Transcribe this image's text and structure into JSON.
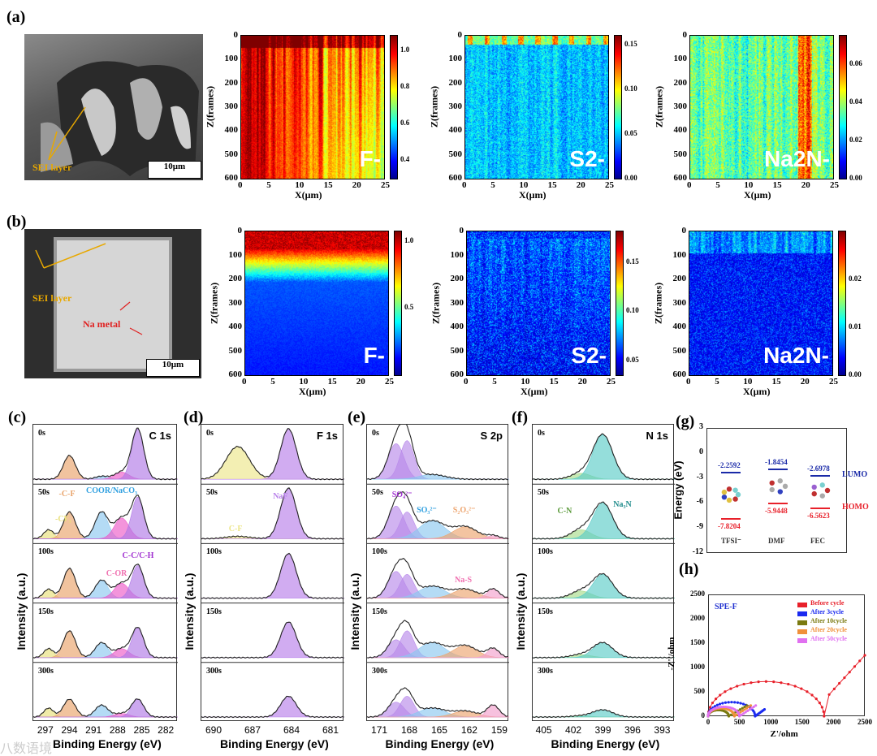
{
  "panel_labels": {
    "a": "(a)",
    "b": "(b)",
    "c": "(c)",
    "d": "(d)",
    "e": "(e)",
    "f": "(f)",
    "g": "(g)",
    "h": "(h)"
  },
  "sem": [
    {
      "scale": "10μm",
      "labels": [
        "SEI layer"
      ]
    },
    {
      "scale": "10μm",
      "labels": [
        "SEI layer",
        "Na metal"
      ]
    }
  ],
  "watermark": "八数语境",
  "chart_data": [
    {
      "type": "heatmap",
      "id": "a-F",
      "ion": "F-",
      "xlabel": "X(μm)",
      "ylabel": "Z(frames)",
      "xlim": [
        0,
        25
      ],
      "ylim": [
        600,
        0
      ],
      "xticks": [
        0,
        5,
        10,
        15,
        20,
        25
      ],
      "yticks": [
        0,
        100,
        200,
        300,
        400,
        500,
        600
      ],
      "cbar": [
        0.3,
        1.08
      ],
      "cticks": [
        "1.0",
        "0.8",
        "0.6",
        "0.4"
      ],
      "pattern": "streaks-high"
    },
    {
      "type": "heatmap",
      "id": "a-S",
      "ion": "S2-",
      "xlabel": "X(μm)",
      "ylabel": "Z(frames)",
      "xlim": [
        0,
        25
      ],
      "ylim": [
        600,
        0
      ],
      "xticks": [
        0,
        5,
        10,
        15,
        20,
        25
      ],
      "yticks": [
        0,
        100,
        200,
        300,
        400,
        500,
        600
      ],
      "cbar": [
        0,
        0.16
      ],
      "cticks": [
        "0.15",
        "0.10",
        "0.05",
        "0.00"
      ],
      "pattern": "top-spots"
    },
    {
      "type": "heatmap",
      "id": "a-N",
      "ion": "Na2N-",
      "xlabel": "X(μm)",
      "ylabel": "Z(frames)",
      "xlim": [
        0,
        25
      ],
      "ylim": [
        600,
        0
      ],
      "xticks": [
        0,
        5,
        10,
        15,
        20,
        25
      ],
      "yticks": [
        0,
        100,
        200,
        300,
        400,
        500,
        600
      ],
      "cbar": [
        0,
        0.075
      ],
      "cticks": [
        "0.06",
        "0.04",
        "0.02",
        "0.00"
      ],
      "pattern": "streaks-mid"
    },
    {
      "type": "heatmap",
      "id": "b-F",
      "ion": "F-",
      "xlabel": "X(μm)",
      "ylabel": "Z(frames)",
      "xlim": [
        0,
        25
      ],
      "ylim": [
        600,
        0
      ],
      "xticks": [
        0,
        5,
        10,
        15,
        20,
        25
      ],
      "yticks": [
        0,
        100,
        200,
        300,
        400,
        500,
        600
      ],
      "cbar": [
        0,
        1.07
      ],
      "cticks": [
        "1.0",
        "0.5"
      ],
      "pattern": "top-band"
    },
    {
      "type": "heatmap",
      "id": "b-S",
      "ion": "S2-",
      "xlabel": "X(μm)",
      "ylabel": "Z(frames)",
      "xlim": [
        0,
        25
      ],
      "ylim": [
        600,
        0
      ],
      "xticks": [
        0,
        5,
        10,
        15,
        20,
        25
      ],
      "yticks": [
        0,
        100,
        200,
        300,
        400,
        500,
        600
      ],
      "cbar": [
        0.035,
        0.181
      ],
      "cticks": [
        "0.15",
        "0.10",
        "0.05"
      ],
      "pattern": "noise"
    },
    {
      "type": "heatmap",
      "id": "b-N",
      "ion": "Na2N-",
      "xlabel": "X(μm)",
      "ylabel": "Z(frames)",
      "xlim": [
        0,
        25
      ],
      "ylim": [
        600,
        0
      ],
      "xticks": [
        0,
        5,
        10,
        15,
        20,
        25
      ],
      "yticks": [
        0,
        100,
        200,
        300,
        400,
        500,
        600
      ],
      "cbar": [
        0,
        0.03
      ],
      "cticks": [
        "0.02",
        "0.01",
        "0.00"
      ],
      "pattern": "low-top"
    },
    {
      "type": "line",
      "id": "c",
      "title": "C 1s",
      "xlabel": "Binding Energy (eV)",
      "ylabel": "Intensity (a.u.)",
      "xlim": [
        298.6,
        280.6
      ],
      "xticks": [
        297,
        294,
        291,
        288,
        285,
        282
      ],
      "rows": [
        "0s",
        "50s",
        "100s",
        "150s",
        "300s"
      ],
      "components": [
        {
          "name": "-CF3",
          "label": "-CF₃",
          "center": 296.7,
          "sigma": 0.6,
          "color": "#e8e07a",
          "heights": [
            0,
            0.15,
            0.15,
            0.15,
            0.15
          ]
        },
        {
          "name": "-C-F",
          "label": "-C-F",
          "center": 294.1,
          "sigma": 0.75,
          "color": "#e9a36a",
          "heights": [
            0.4,
            0.45,
            0.5,
            0.45,
            0.3
          ]
        },
        {
          "name": "COOR/NaCO3",
          "label": "COOR/NaCO₃",
          "center": 290.1,
          "sigma": 0.8,
          "color": "#8cc8f0",
          "heights": [
            0.05,
            0.45,
            0.3,
            0.25,
            0.2
          ]
        },
        {
          "name": "C-OR",
          "label": "C-OR",
          "center": 287.6,
          "sigma": 0.9,
          "color": "#ec5ac8",
          "heights": [
            0.12,
            0.35,
            0.25,
            0.15,
            0.06
          ]
        },
        {
          "name": "C-C/C-H",
          "label": "C-C/C-H",
          "center": 285.6,
          "sigma": 0.75,
          "color": "#b07ae6",
          "heights": [
            0.85,
            0.7,
            0.55,
            0.5,
            0.3
          ]
        }
      ]
    },
    {
      "type": "line",
      "id": "d",
      "title": "F 1s",
      "xlabel": "Binding Energy (eV)",
      "ylabel": "Intensity (a.u.)",
      "xlim": [
        691,
        680
      ],
      "xticks": [
        690,
        687,
        684,
        681
      ],
      "rows": [
        "0s",
        "50s",
        "100s",
        "150s",
        "300s"
      ],
      "components": [
        {
          "name": "C-F",
          "label": "C-F",
          "center": 688.2,
          "sigma": 0.9,
          "color": "#ece68a",
          "heights": [
            0.55,
            0.04,
            0,
            0,
            0
          ]
        },
        {
          "name": "NaF",
          "label": "NaF",
          "center": 684.3,
          "sigma": 0.6,
          "color": "#b880ea",
          "heights": [
            0.85,
            0.85,
            0.75,
            0.6,
            0.35
          ]
        }
      ]
    },
    {
      "type": "line",
      "id": "e",
      "title": "S 2p",
      "xlabel": "Binding Energy (eV)",
      "ylabel": "Intensity (a.u.)",
      "xlim": [
        172.3,
        158.1
      ],
      "xticks": [
        171,
        168,
        165,
        162,
        159
      ],
      "rows": [
        "0s",
        "50s",
        "100s",
        "150s",
        "300s"
      ],
      "components": [
        {
          "name": "SO4 2p3/2",
          "label": "SO₄²⁻",
          "center": 169.4,
          "sigma": 0.8,
          "color": "#b98aea",
          "heights": [
            0.6,
            0.55,
            0.45,
            0.3,
            0.25
          ]
        },
        {
          "name": "SO4 2p1/2",
          "label": "",
          "center": 168.3,
          "sigma": 0.7,
          "color": "#b98aea",
          "heights": [
            0.65,
            0.45,
            0.4,
            0.45,
            0.35
          ]
        },
        {
          "name": "SO3",
          "label": "SO₃²⁻",
          "center": 165.8,
          "sigma": 1.3,
          "color": "#8cc8f0",
          "heights": [
            0.08,
            0.3,
            0.2,
            0.25,
            0.15
          ]
        },
        {
          "name": "S2O3",
          "label": "S₂O₃²⁻",
          "center": 162.5,
          "sigma": 1.2,
          "color": "#eda46e",
          "heights": [
            0,
            0.2,
            0.15,
            0.2,
            0.1
          ]
        },
        {
          "name": "Na-S",
          "label": "Na-S",
          "center": 159.7,
          "sigma": 0.6,
          "color": "#f2a0cc",
          "heights": [
            0,
            0.05,
            0.15,
            0.15,
            0.2
          ]
        }
      ]
    },
    {
      "type": "line",
      "id": "f",
      "title": "N 1s",
      "xlabel": "Binding Energy (eV)",
      "ylabel": "Intensity (a.u.)",
      "xlim": [
        406.2,
        391.8
      ],
      "xticks": [
        405,
        402,
        399,
        396,
        393
      ],
      "rows": [
        "0s",
        "50s",
        "100s",
        "150s",
        "300s"
      ],
      "components": [
        {
          "name": "C-N",
          "label": "C-N",
          "center": 401.3,
          "sigma": 1.0,
          "color": "#a8dc8a",
          "heights": [
            0.1,
            0.15,
            0.12,
            0.05,
            0.02
          ]
        },
        {
          "name": "Na3N",
          "label": "Na₃N",
          "center": 399.1,
          "sigma": 1.0,
          "color": "#5cccc8",
          "heights": [
            0.75,
            0.6,
            0.4,
            0.25,
            0.12
          ]
        }
      ]
    },
    {
      "type": "bar",
      "id": "g",
      "ylabel": "Energy (eV)",
      "ylim": [
        -12,
        3
      ],
      "yticks": [
        3,
        0,
        -3,
        -6,
        -9,
        -12
      ],
      "categories": [
        "TFSI⁻",
        "DMF",
        "FEC"
      ],
      "series": [
        {
          "name": "LUMO",
          "color": "#1a2aa8",
          "values": [
            -2.2592,
            -1.8454,
            -2.6978
          ],
          "labels": [
            "-2.2592",
            "-1.8454",
            "-2.6978"
          ]
        },
        {
          "name": "HOMO",
          "color": "#e8202a",
          "values": [
            -7.8204,
            -5.9448,
            -6.5623
          ],
          "labels": [
            "-7.8204",
            "-5.9448",
            "-6.5623"
          ]
        }
      ]
    },
    {
      "type": "scatter",
      "id": "h",
      "annotation": "SPE-F",
      "xlabel": "Z'/ohm",
      "ylabel": "-Z''/ohm",
      "xlim": [
        0,
        2500
      ],
      "ylim": [
        0,
        2500
      ],
      "xticks": [
        0,
        500,
        1000,
        1500,
        2000,
        2500
      ],
      "yticks": [
        0,
        500,
        1000,
        1500,
        2000,
        2500
      ],
      "legend": "top-right",
      "series": [
        {
          "name": "Before cycle",
          "color": "#e8202a",
          "R": 1850,
          "tail_end": [
            2500,
            1250
          ]
        },
        {
          "name": "After 3cycle",
          "color": "#1a2af0",
          "R": 750,
          "tail_end": [
            900,
            140
          ]
        },
        {
          "name": "After 10cycle",
          "color": "#7a7a10",
          "R": 330,
          "tail_end": [
            620,
            220
          ]
        },
        {
          "name": "After 20cycle",
          "color": "#f0903a",
          "R": 420,
          "tail_end": [
            680,
            220
          ]
        },
        {
          "name": "After 50cycle",
          "color": "#e070f0",
          "R": 500,
          "tail_end": [
            760,
            220
          ]
        }
      ]
    }
  ]
}
